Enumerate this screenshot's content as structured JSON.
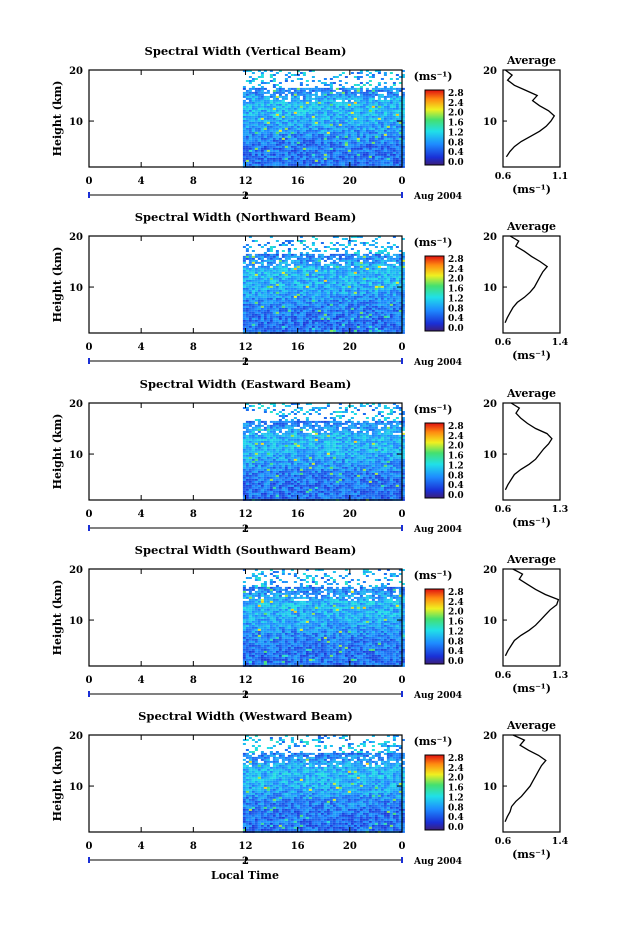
{
  "figure": {
    "x_tick_labels": [
      "0",
      "4",
      "8",
      "12",
      "16",
      "20",
      "0"
    ],
    "date_marker": "2",
    "date_label": "Aug 2004",
    "xlabel": "Local Time",
    "ylabel": "Height (km)",
    "y_tick_labels": [
      "20",
      "10"
    ],
    "units_label": "(ms⁻¹)",
    "colorbar_ticks": [
      "2.8",
      "2.4",
      "2.0",
      "1.6",
      "1.2",
      "0.8",
      "0.4",
      "0.0"
    ],
    "avg_title": "Average",
    "avg_xlabel": "(ms⁻¹)"
  },
  "chart_data": [
    {
      "type": "heatmap",
      "title": "Spectral Width (Vertical Beam)",
      "xlabel": "",
      "ylabel": "Height (km)",
      "xlim": [
        0,
        24
      ],
      "ylim": [
        1,
        20
      ],
      "data_start_hour": 11.8,
      "colorbar": {
        "label": "(ms⁻¹)",
        "range": [
          0.0,
          2.8
        ]
      },
      "average_profile": {
        "type": "line",
        "title": "Average",
        "xlim": [
          0.6,
          1.1
        ],
        "xticks": [
          "0.6",
          "1.1"
        ],
        "heights": [
          3,
          4,
          5,
          6,
          7,
          8,
          9,
          10,
          11,
          12,
          13,
          14,
          15,
          16,
          17,
          18,
          19,
          20
        ],
        "values": [
          0.63,
          0.66,
          0.7,
          0.76,
          0.84,
          0.92,
          0.98,
          1.02,
          1.05,
          1.0,
          0.92,
          0.86,
          0.9,
          0.8,
          0.7,
          0.64,
          0.68,
          0.62
        ]
      }
    },
    {
      "type": "heatmap",
      "title": "Spectral Width (Northward Beam)",
      "xlabel": "",
      "ylabel": "Height (km)",
      "xlim": [
        0,
        24
      ],
      "ylim": [
        1,
        20
      ],
      "data_start_hour": 11.8,
      "colorbar": {
        "label": "(ms⁻¹)",
        "range": [
          0.0,
          2.8
        ]
      },
      "average_profile": {
        "type": "line",
        "title": "Average",
        "xlim": [
          0.6,
          1.4
        ],
        "xticks": [
          "0.6",
          "1.4"
        ],
        "heights": [
          3,
          4,
          5,
          6,
          7,
          8,
          9,
          10,
          11,
          12,
          13,
          14,
          15,
          16,
          17,
          18,
          19,
          20
        ],
        "values": [
          0.63,
          0.66,
          0.7,
          0.74,
          0.8,
          0.9,
          0.98,
          1.04,
          1.08,
          1.12,
          1.16,
          1.22,
          1.12,
          1.0,
          0.9,
          0.78,
          0.82,
          0.7
        ]
      }
    },
    {
      "type": "heatmap",
      "title": "Spectral Width (Eastward Beam)",
      "xlabel": "",
      "ylabel": "Height (km)",
      "xlim": [
        0,
        24
      ],
      "ylim": [
        1,
        20
      ],
      "data_start_hour": 11.8,
      "colorbar": {
        "label": "(ms⁻¹)",
        "range": [
          0.0,
          2.8
        ]
      },
      "average_profile": {
        "type": "line",
        "title": "Average",
        "xlim": [
          0.6,
          1.3
        ],
        "xticks": [
          "0.6",
          "1.3"
        ],
        "heights": [
          3,
          4,
          5,
          6,
          7,
          8,
          9,
          10,
          11,
          12,
          13,
          14,
          15,
          16,
          17,
          18,
          19,
          20
        ],
        "values": [
          0.63,
          0.66,
          0.7,
          0.74,
          0.82,
          0.92,
          1.0,
          1.05,
          1.1,
          1.16,
          1.2,
          1.14,
          1.0,
          0.9,
          0.82,
          0.76,
          0.8,
          0.7
        ]
      }
    },
    {
      "type": "heatmap",
      "title": "Spectral Width (Southward Beam)",
      "xlabel": "",
      "ylabel": "Height (km)",
      "xlim": [
        0,
        24
      ],
      "ylim": [
        1,
        20
      ],
      "data_start_hour": 11.8,
      "colorbar": {
        "label": "(ms⁻¹)",
        "range": [
          0.0,
          2.8
        ]
      },
      "average_profile": {
        "type": "line",
        "title": "Average",
        "xlim": [
          0.6,
          1.3
        ],
        "xticks": [
          "0.6",
          "1.3"
        ],
        "heights": [
          3,
          4,
          5,
          6,
          7,
          8,
          9,
          10,
          11,
          12,
          13,
          14,
          15,
          16,
          17,
          18,
          19,
          20
        ],
        "values": [
          0.63,
          0.66,
          0.7,
          0.74,
          0.82,
          0.92,
          1.0,
          1.06,
          1.12,
          1.18,
          1.26,
          1.28,
          1.12,
          1.0,
          0.9,
          0.8,
          0.84,
          0.72
        ]
      }
    },
    {
      "type": "heatmap",
      "title": "Spectral Width (Westward Beam)",
      "xlabel": "Local Time",
      "ylabel": "Height (km)",
      "xlim": [
        0,
        24
      ],
      "ylim": [
        1,
        20
      ],
      "data_start_hour": 11.8,
      "colorbar": {
        "label": "(ms⁻¹)",
        "range": [
          0.0,
          2.8
        ]
      },
      "average_profile": {
        "type": "line",
        "title": "Average",
        "xlim": [
          0.6,
          1.4
        ],
        "xticks": [
          "0.6",
          "1.4"
        ],
        "heights": [
          3,
          4,
          5,
          6,
          7,
          8,
          9,
          10,
          11,
          12,
          13,
          14,
          15,
          16,
          17,
          18,
          19,
          20
        ],
        "values": [
          0.63,
          0.66,
          0.7,
          0.72,
          0.78,
          0.86,
          0.92,
          0.98,
          1.02,
          1.06,
          1.1,
          1.14,
          1.2,
          1.1,
          0.96,
          0.84,
          0.9,
          0.74
        ]
      }
    }
  ]
}
